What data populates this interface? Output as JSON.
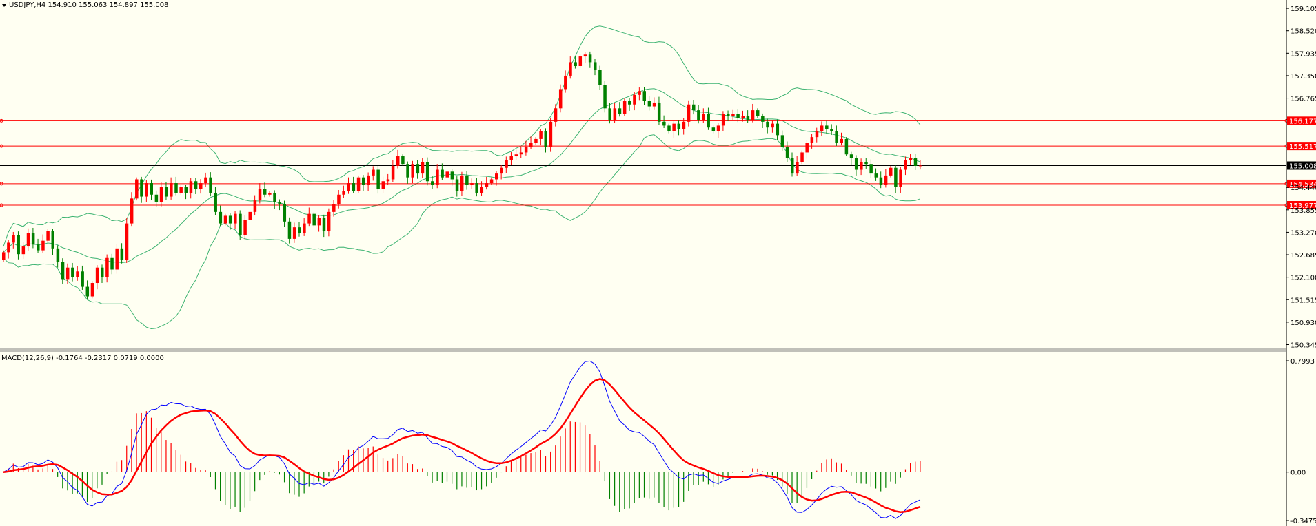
{
  "chart_data": {
    "type": "candlestick",
    "symbol_header": "USDJPY,H4  154.910 155.063 154.897 155.008",
    "price_axis": {
      "ylim": [
        150.3,
        159.25
      ],
      "ticks": [
        "159.105",
        "158.520",
        "157.935",
        "157.350",
        "156.765",
        "156.177",
        "155.517",
        "155.008",
        "154.534",
        "154.440",
        "153.977",
        "153.855",
        "153.270",
        "152.685",
        "152.100",
        "151.515",
        "150.930",
        "150.345"
      ]
    },
    "levels": [
      {
        "value": 156.177,
        "label": "156.177",
        "color": "#ff0000"
      },
      {
        "value": 155.517,
        "label": "155.517",
        "color": "#ff0000"
      },
      {
        "value": 155.008,
        "label": "155.008",
        "color": "#000000"
      },
      {
        "value": 154.534,
        "label": "154.534",
        "color": "#ff0000"
      },
      {
        "value": 153.977,
        "label": "153.977",
        "color": "#ff0000"
      }
    ],
    "close": [
      152.75,
      153.0,
      153.2,
      152.7,
      152.9,
      153.25,
      152.95,
      152.8,
      153.05,
      153.3,
      152.85,
      152.5,
      152.05,
      152.35,
      152.1,
      152.25,
      151.85,
      151.6,
      151.95,
      152.35,
      152.1,
      152.6,
      152.3,
      152.85,
      152.55,
      153.5,
      154.15,
      154.65,
      154.2,
      154.55,
      154.25,
      154.05,
      154.45,
      154.2,
      154.55,
      154.3,
      154.45,
      154.3,
      154.6,
      154.4,
      154.55,
      154.7,
      154.3,
      153.8,
      153.5,
      153.7,
      153.5,
      153.75,
      153.2,
      153.6,
      153.8,
      154.1,
      154.4,
      154.25,
      154.3,
      154.05,
      154.0,
      153.55,
      153.1,
      153.4,
      153.25,
      153.5,
      153.75,
      153.45,
      153.65,
      153.3,
      153.8,
      154.0,
      154.25,
      154.35,
      154.55,
      154.35,
      154.7,
      154.5,
      154.75,
      154.9,
      154.4,
      154.6,
      154.65,
      155.0,
      155.25,
      155.05,
      154.7,
      155.05,
      154.8,
      155.1,
      154.6,
      154.5,
      154.9,
      154.7,
      154.85,
      154.65,
      154.35,
      154.75,
      154.5,
      154.55,
      154.3,
      154.45,
      154.55,
      154.65,
      154.8,
      154.95,
      155.15,
      155.25,
      155.3,
      155.35,
      155.5,
      155.6,
      155.7,
      155.9,
      155.5,
      156.15,
      156.5,
      157.0,
      157.35,
      157.7,
      157.6,
      157.85,
      157.9,
      157.7,
      157.5,
      157.1,
      156.5,
      156.2,
      156.5,
      156.35,
      156.7,
      156.6,
      156.85,
      156.95,
      156.7,
      156.55,
      156.65,
      156.15,
      156.05,
      155.9,
      156.1,
      155.95,
      156.15,
      156.6,
      156.45,
      156.2,
      156.35,
      156.0,
      155.9,
      156.05,
      156.35,
      156.3,
      156.35,
      156.25,
      156.3,
      156.2,
      156.45,
      156.3,
      156.15,
      156.0,
      156.1,
      155.8,
      155.5,
      155.2,
      154.8,
      155.1,
      155.35,
      155.6,
      155.75,
      155.9,
      156.05,
      155.95,
      155.9,
      155.6,
      155.7,
      155.3,
      155.2,
      154.9,
      155.1,
      155.05,
      154.8,
      154.7,
      154.5,
      154.75,
      154.95,
      154.45,
      154.9,
      155.15,
      155.2,
      155.0,
      155.01
    ],
    "macd_indicator": {
      "label": "MACD(12,26,9) -0.1764 -0.2317 0.0719 0.0000",
      "ylim": [
        -0.3475,
        0.7993
      ],
      "ticks": [
        "0.7993",
        "0.00",
        "-0.3475"
      ],
      "histogram_color_up": "#ff0000",
      "histogram_color_down": "#008000",
      "macd_line_color": "#0000ff",
      "signal_line_color": "#ff0000"
    },
    "bollinger_color": "#3cb371",
    "xlabel": "",
    "ylabel": ""
  }
}
